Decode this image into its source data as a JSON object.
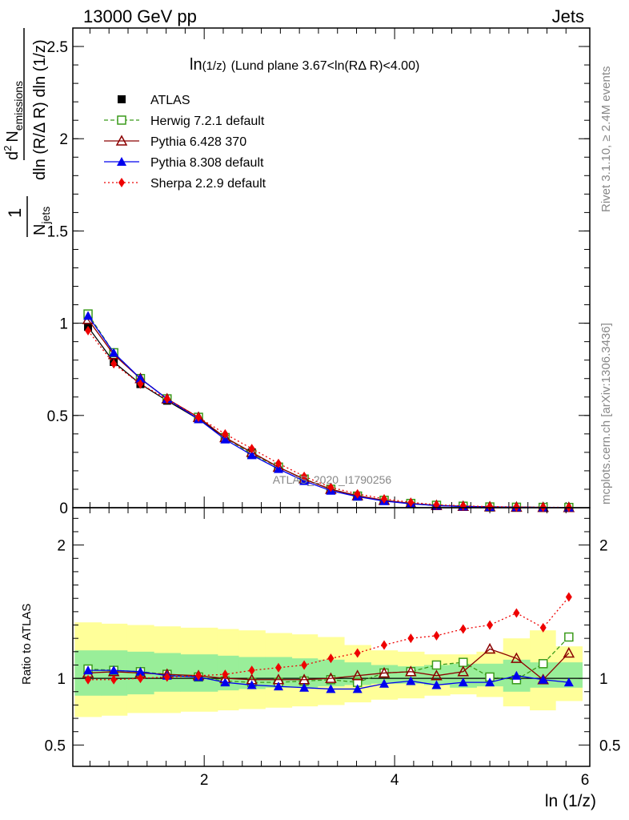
{
  "header": {
    "left": "13000 GeV pp",
    "right": "Jets"
  },
  "side_text": {
    "rivet": "Rivet 3.1.10, ≥ 2.4M events",
    "mcplots": "mcplots.cern.ch [arXiv:1306.3436]"
  },
  "watermark": "ATLAS_2020_I1790256",
  "colors": {
    "atlas": "#000000",
    "herwig": "#3a9a1a",
    "pythia6": "#8b0000",
    "pythia8": "#0000ee",
    "sherpa": "#ee0000",
    "band_inner": "#99ee99",
    "band_outer": "#ffff99"
  },
  "chart_data": [
    {
      "type": "line",
      "title_main": "ln",
      "title_sub": "(1/z)",
      "title_rest": "(Lund plane 3.67<ln(RΔ R)<4.00)",
      "ylabel": {
        "frac_num": "1",
        "frac_den_main": "N",
        "frac_den_sub": "jets",
        "d2": "d",
        "d2_sup": "2",
        "n_main": "N",
        "n_sub": "emissions",
        "den2": "dln (R/Δ R) dln (1/z)"
      },
      "xlim": [
        0.62,
        6.05
      ],
      "ylim": [
        0,
        2.6
      ],
      "yticks": [
        {
          "v": 0,
          "t": "0"
        },
        {
          "v": 0.5,
          "t": "0.5"
        },
        {
          "v": 1,
          "t": "1"
        },
        {
          "v": 1.5,
          "t": "1.5"
        },
        {
          "v": 2,
          "t": "2"
        },
        {
          "v": 2.5,
          "t": "2.5"
        }
      ],
      "x": [
        0.78,
        1.05,
        1.33,
        1.61,
        1.94,
        2.22,
        2.5,
        2.78,
        3.05,
        3.33,
        3.61,
        3.89,
        4.17,
        4.44,
        4.72,
        5.0,
        5.28,
        5.56,
        5.83
      ],
      "series": [
        {
          "name": "ATLAS",
          "key": "atlas",
          "marker": "square",
          "dash": "none",
          "values": [
            0.98,
            0.79,
            0.67,
            0.58,
            0.48,
            0.38,
            0.3,
            0.22,
            0.155,
            0.1,
            0.065,
            0.038,
            0.022,
            0.012,
            0.007,
            0.004,
            0.0025,
            0.0015,
            0.001
          ]
        },
        {
          "name": "Herwig 7.2.1 default",
          "key": "herwig",
          "marker": "open-square",
          "dash": "5,3",
          "values": [
            1.05,
            0.84,
            0.7,
            0.59,
            0.49,
            0.38,
            0.29,
            0.22,
            0.155,
            0.1,
            0.063,
            0.04,
            0.023,
            0.013,
            0.008,
            0.004,
            0.0025,
            0.0017,
            0.0013
          ]
        },
        {
          "name": "Pythia 6.428 370",
          "key": "pythia6",
          "marker": "open-triangle",
          "dash": "none",
          "values": [
            1.02,
            0.83,
            0.7,
            0.59,
            0.49,
            0.38,
            0.3,
            0.22,
            0.155,
            0.1,
            0.065,
            0.04,
            0.023,
            0.012,
            0.0075,
            0.005,
            0.0027,
            0.0015,
            0.0012
          ]
        },
        {
          "name": "Pythia 8.308 default",
          "key": "pythia8",
          "marker": "triangle",
          "dash": "none",
          "values": [
            1.04,
            0.84,
            0.7,
            0.59,
            0.48,
            0.37,
            0.285,
            0.21,
            0.145,
            0.092,
            0.06,
            0.036,
            0.021,
            0.0115,
            0.0068,
            0.0039,
            0.0026,
            0.0015,
            0.001
          ]
        },
        {
          "name": "Sherpa 2.2.9 default",
          "key": "sherpa",
          "marker": "diamond",
          "dash": "2,3",
          "values": [
            0.96,
            0.78,
            0.67,
            0.59,
            0.49,
            0.4,
            0.32,
            0.24,
            0.17,
            0.11,
            0.075,
            0.048,
            0.029,
            0.016,
            0.01,
            0.0057,
            0.004,
            0.0021,
            0.0016
          ]
        }
      ]
    },
    {
      "type": "line",
      "ylabel": "Ratio to ATLAS",
      "xlabel": "ln (1/z)",
      "xlim": [
        0.62,
        6.05
      ],
      "ylim": [
        0.34,
        2.28
      ],
      "xticks": [
        {
          "v": 2,
          "t": "2"
        },
        {
          "v": 4,
          "t": "4"
        },
        {
          "v": 6,
          "t": "6"
        }
      ],
      "yticks": [
        {
          "v": 0.5,
          "t": "0.5"
        },
        {
          "v": 1,
          "t": "1"
        },
        {
          "v": 2,
          "t": "2"
        }
      ],
      "bin_edges": [
        0.64,
        0.92,
        1.19,
        1.47,
        1.75,
        2.14,
        2.36,
        2.64,
        2.92,
        3.19,
        3.47,
        3.75,
        4.03,
        4.31,
        4.58,
        4.86,
        5.14,
        5.42,
        5.69,
        5.97
      ],
      "band_outer": [
        [
          0.71,
          1.42
        ],
        [
          0.72,
          1.41
        ],
        [
          0.74,
          1.4
        ],
        [
          0.74,
          1.39
        ],
        [
          0.75,
          1.38
        ],
        [
          0.76,
          1.37
        ],
        [
          0.77,
          1.36
        ],
        [
          0.78,
          1.34
        ],
        [
          0.79,
          1.33
        ],
        [
          0.8,
          1.31
        ],
        [
          0.82,
          1.25
        ],
        [
          0.84,
          1.21
        ],
        [
          0.85,
          1.2
        ],
        [
          0.87,
          1.18
        ],
        [
          0.88,
          1.18
        ],
        [
          0.86,
          1.2
        ],
        [
          0.79,
          1.3
        ],
        [
          0.76,
          1.36
        ],
        [
          0.83,
          1.24
        ]
      ],
      "band_inner": [
        [
          0.87,
          1.21
        ],
        [
          0.87,
          1.21
        ],
        [
          0.88,
          1.2
        ],
        [
          0.9,
          1.19
        ],
        [
          0.9,
          1.18
        ],
        [
          0.91,
          1.17
        ],
        [
          0.92,
          1.16
        ],
        [
          0.93,
          1.16
        ],
        [
          0.93,
          1.15
        ],
        [
          0.94,
          1.14
        ],
        [
          0.95,
          1.12
        ],
        [
          0.96,
          1.1
        ],
        [
          0.96,
          1.09
        ],
        [
          0.95,
          1.1
        ],
        [
          0.93,
          1.11
        ],
        [
          0.94,
          1.11
        ],
        [
          0.9,
          1.14
        ],
        [
          0.93,
          1.12
        ],
        [
          0.93,
          1.12
        ]
      ],
      "x": [
        0.78,
        1.05,
        1.33,
        1.61,
        1.94,
        2.22,
        2.5,
        2.78,
        3.05,
        3.33,
        3.61,
        3.89,
        4.17,
        4.44,
        4.72,
        5.0,
        5.28,
        5.56,
        5.83
      ],
      "series": [
        {
          "name": "Herwig 7.2.1 default",
          "key": "herwig",
          "marker": "open-square",
          "dash": "5,3",
          "values": [
            1.07,
            1.06,
            1.05,
            1.03,
            1.01,
            0.98,
            0.97,
            0.97,
            0.98,
            0.99,
            0.97,
            1.04,
            1.05,
            1.1,
            1.12,
            1.01,
            0.99,
            1.11,
            1.31
          ]
        },
        {
          "name": "Pythia 6.428 370",
          "key": "pythia6",
          "marker": "open-triangle",
          "dash": "none",
          "values": [
            1.04,
            1.05,
            1.04,
            1.03,
            1.02,
            1.0,
            0.99,
            0.99,
            0.99,
            1.0,
            1.02,
            1.04,
            1.05,
            1.02,
            1.05,
            1.22,
            1.15,
            0.99,
            1.19
          ]
        },
        {
          "name": "Pythia 8.308 default",
          "key": "pythia8",
          "marker": "triangle",
          "dash": "none",
          "values": [
            1.06,
            1.06,
            1.05,
            1.02,
            1.01,
            0.97,
            0.95,
            0.94,
            0.93,
            0.92,
            0.92,
            0.96,
            0.98,
            0.95,
            0.97,
            0.97,
            1.02,
            0.99,
            0.97
          ]
        },
        {
          "name": "Sherpa 2.2.9 default",
          "key": "sherpa",
          "marker": "diamond",
          "dash": "2,3",
          "values": [
            0.99,
            0.99,
            1.0,
            1.01,
            1.02,
            1.03,
            1.06,
            1.08,
            1.1,
            1.15,
            1.19,
            1.25,
            1.3,
            1.32,
            1.37,
            1.4,
            1.49,
            1.38,
            1.61
          ]
        }
      ]
    }
  ]
}
